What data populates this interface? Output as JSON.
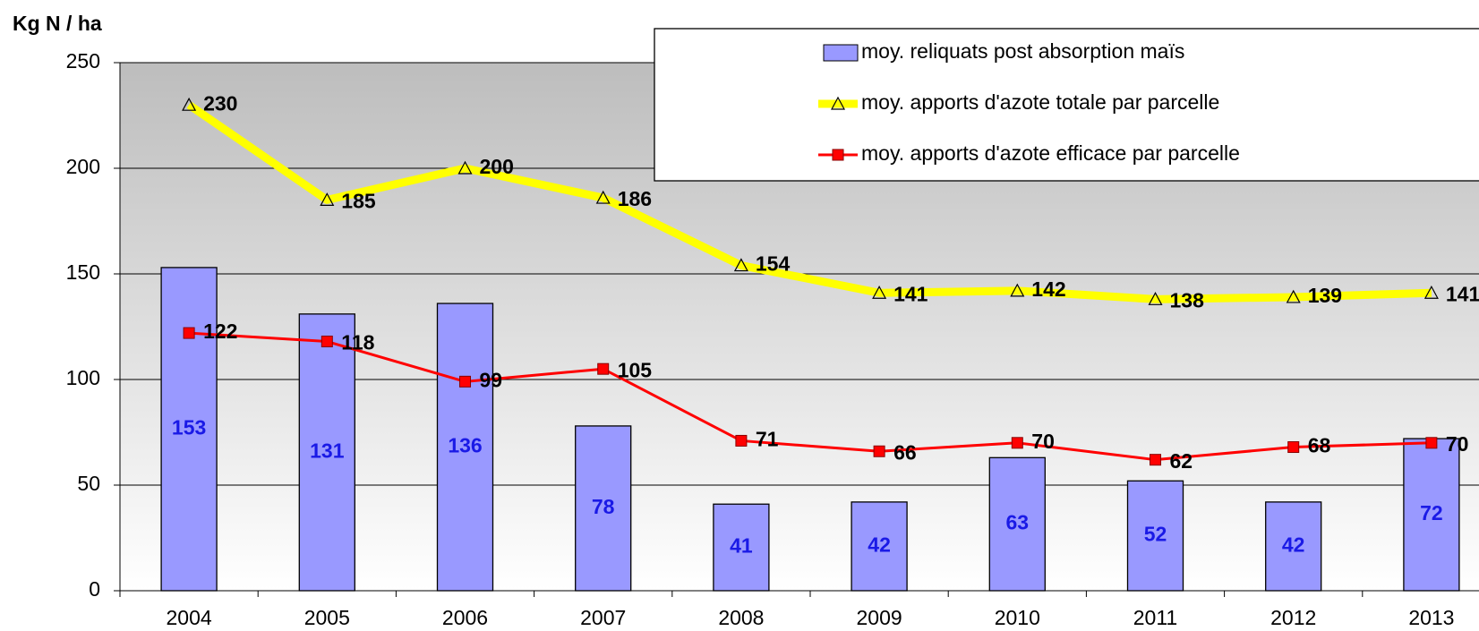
{
  "chart_data": {
    "type": "combo",
    "ylabel": "Kg N / ha",
    "categories": [
      "2004",
      "2005",
      "2006",
      "2007",
      "2008",
      "2009",
      "2010",
      "2011",
      "2012",
      "2013"
    ],
    "series": [
      {
        "name": "moy. reliquats post absorption maïs",
        "type": "bar",
        "color": "#9999ff",
        "label_color": "#1a1ae6",
        "values": [
          153,
          131,
          136,
          78,
          41,
          42,
          63,
          52,
          42,
          72
        ]
      },
      {
        "name": "moy. apports d'azote totale par parcelle",
        "type": "line",
        "marker": "triangle",
        "color": "#ffff00",
        "values": [
          230,
          185,
          200,
          186,
          154,
          141,
          142,
          138,
          139,
          141
        ]
      },
      {
        "name": "moy. apports d'azote efficace par parcelle",
        "type": "line",
        "marker": "square",
        "color": "#ff0000",
        "values": [
          122,
          118,
          99,
          105,
          71,
          66,
          70,
          62,
          68,
          70
        ]
      }
    ],
    "ylim": [
      0,
      250
    ],
    "yticks": [
      0,
      50,
      100,
      150,
      200,
      250
    ],
    "grid": true,
    "legend": "top-right"
  }
}
